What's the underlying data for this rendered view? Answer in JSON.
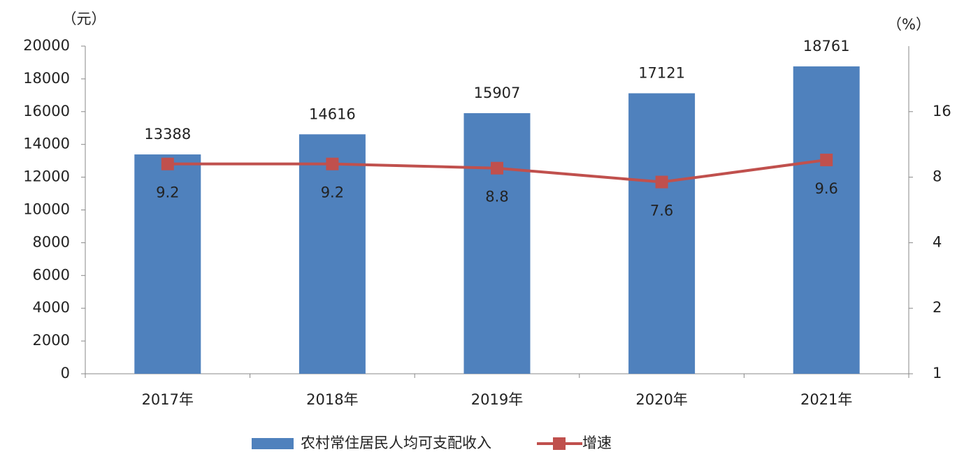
{
  "chart_data": {
    "type": "bar",
    "y_label": "（元）",
    "y2_label": "（%）",
    "categories": [
      "2017年",
      "2018年",
      "2019年",
      "2020年",
      "2021年"
    ],
    "series": [
      {
        "name": "农村常住居民人均可支配收入",
        "type": "bar",
        "color": "#4f81bd",
        "values": [
          13388,
          14616,
          15907,
          17121,
          18761
        ]
      },
      {
        "name": "增速",
        "type": "line",
        "axis": "y2",
        "color": "#c0504d",
        "values": [
          9.2,
          9.2,
          8.8,
          7.6,
          9.6
        ]
      }
    ],
    "ylim": [
      0,
      20000
    ],
    "yticks": [
      0,
      2000,
      4000,
      6000,
      8000,
      10000,
      12000,
      14000,
      16000,
      18000,
      20000
    ],
    "y2lim": [
      1,
      32
    ],
    "y2ticks": [
      1,
      2,
      4,
      8,
      16
    ],
    "y2scale": "log",
    "legend": "bottom"
  }
}
